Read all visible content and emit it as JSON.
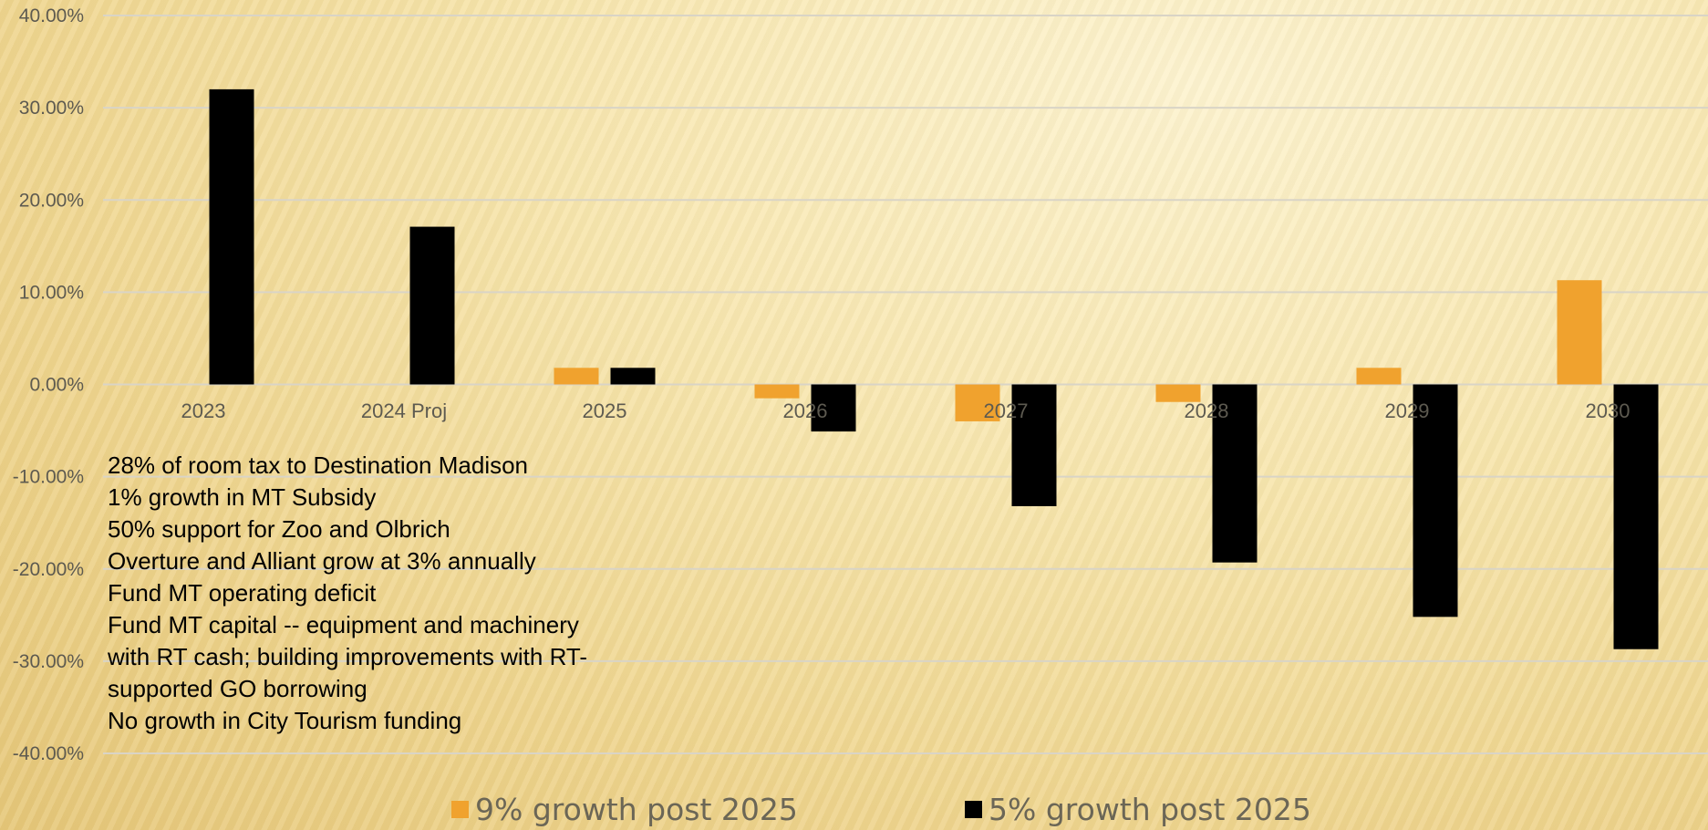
{
  "chart_data": {
    "type": "bar",
    "categories": [
      "2023",
      "2024 Proj",
      "2025",
      "2026",
      "2027",
      "2028",
      "2029",
      "2030"
    ],
    "series": [
      {
        "name": "9% growth post 2025",
        "color": "#f0a22e",
        "values": [
          null,
          null,
          1.8,
          -1.5,
          -4.0,
          -1.9,
          1.8,
          11.3
        ]
      },
      {
        "name": "5% growth post 2025",
        "color": "#000000",
        "values": [
          32.0,
          17.1,
          1.8,
          -5.1,
          -13.2,
          -19.3,
          -25.2,
          -28.7
        ]
      }
    ],
    "ylim": [
      -40,
      40
    ],
    "yticks": [
      "-40.00%",
      "-30.00%",
      "-20.00%",
      "-10.00%",
      "0.00%",
      "10.00%",
      "20.00%",
      "30.00%",
      "40.00%"
    ],
    "grid": true,
    "legend_position": "bottom"
  },
  "notes": [
    "28% of room tax to Destination Madison",
    "1% growth in MT Subsidy",
    "50% support for Zoo and Olbrich",
    "Overture and Alliant grow at 3% annually",
    "Fund MT operating deficit",
    "Fund MT capital -- equipment and machinery",
    "with RT cash; building improvements with RT-",
    "supported GO borrowing",
    "No growth in City Tourism funding"
  ],
  "colors": {
    "grid": "#d9d4c6",
    "axis_text": "#5d5a50"
  }
}
